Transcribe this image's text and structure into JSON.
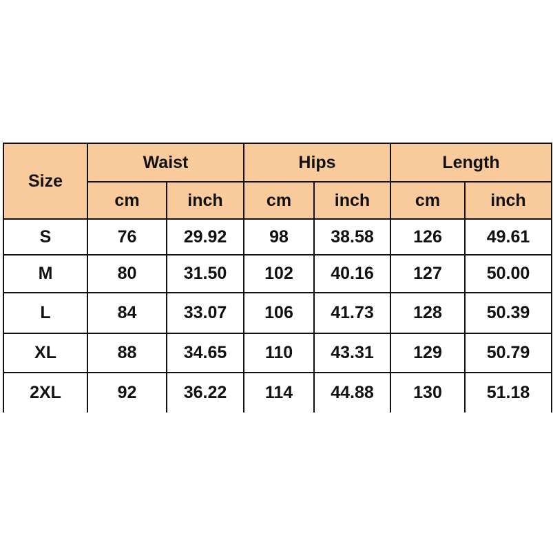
{
  "header": {
    "size": "Size",
    "groups": [
      "Waist",
      "Hips",
      "Length"
    ],
    "units": [
      "cm",
      "inch",
      "cm",
      "inch",
      "cm",
      "inch"
    ]
  },
  "header_color": "#f9cb9c",
  "rows": [
    {
      "size": "S",
      "values": [
        "76",
        "29.92",
        "98",
        "38.58",
        "126",
        "49.61"
      ]
    },
    {
      "size": "M",
      "values": [
        "80",
        "31.50",
        "102",
        "40.16",
        "127",
        "50.00"
      ]
    },
    {
      "size": "L",
      "values": [
        "84",
        "33.07",
        "106",
        "41.73",
        "128",
        "50.39"
      ]
    },
    {
      "size": "XL",
      "values": [
        "88",
        "34.65",
        "110",
        "43.31",
        "129",
        "50.79"
      ]
    },
    {
      "size": "2XL",
      "values": [
        "92",
        "36.22",
        "114",
        "44.88",
        "130",
        "51.18"
      ]
    }
  ]
}
